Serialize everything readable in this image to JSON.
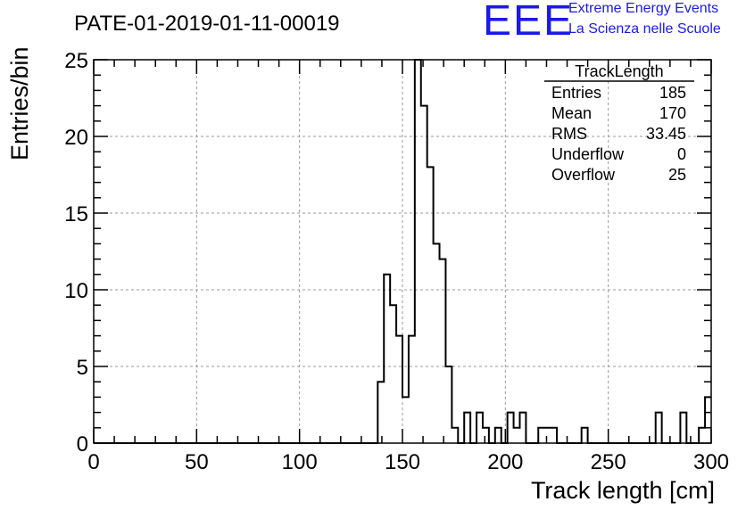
{
  "header": {
    "title": "PATE-01-2019-01-11-00019",
    "logo_text": "EEE",
    "logo_line1": "Extreme Energy Events",
    "logo_line2": "La Scienza nelle Scuole",
    "logo_color": "#1a1ae6"
  },
  "stats": {
    "title": "TrackLength",
    "rows": [
      {
        "label": "Entries",
        "value": "185"
      },
      {
        "label": "Mean",
        "value": "170"
      },
      {
        "label": "RMS",
        "value": "33.45"
      },
      {
        "label": "Underflow",
        "value": "0"
      },
      {
        "label": "Overflow",
        "value": "25"
      }
    ]
  },
  "chart_data": {
    "type": "histogram",
    "title": "PATE-01-2019-01-11-00019",
    "xlabel": "Track length [cm]",
    "ylabel": "Entries/bin",
    "xlim": [
      0,
      300
    ],
    "ylim": [
      0,
      25
    ],
    "bin_width": 3,
    "grid": true,
    "x_ticks": [
      0,
      50,
      100,
      150,
      200,
      250,
      300
    ],
    "y_ticks": [
      0,
      5,
      10,
      15,
      20,
      25
    ],
    "bins": [
      {
        "x": 138,
        "count": 4
      },
      {
        "x": 141,
        "count": 11
      },
      {
        "x": 144,
        "count": 9
      },
      {
        "x": 147,
        "count": 7
      },
      {
        "x": 150,
        "count": 3
      },
      {
        "x": 153,
        "count": 7
      },
      {
        "x": 156,
        "count": 25
      },
      {
        "x": 159,
        "count": 22
      },
      {
        "x": 162,
        "count": 18
      },
      {
        "x": 165,
        "count": 13
      },
      {
        "x": 168,
        "count": 12
      },
      {
        "x": 171,
        "count": 5
      },
      {
        "x": 174,
        "count": 1
      },
      {
        "x": 180,
        "count": 2
      },
      {
        "x": 186,
        "count": 2
      },
      {
        "x": 189,
        "count": 1
      },
      {
        "x": 195,
        "count": 1
      },
      {
        "x": 201,
        "count": 2
      },
      {
        "x": 204,
        "count": 1
      },
      {
        "x": 207,
        "count": 2
      },
      {
        "x": 216,
        "count": 1
      },
      {
        "x": 219,
        "count": 1
      },
      {
        "x": 222,
        "count": 1
      },
      {
        "x": 237,
        "count": 1
      },
      {
        "x": 273,
        "count": 2
      },
      {
        "x": 285,
        "count": 2
      },
      {
        "x": 294,
        "count": 1
      },
      {
        "x": 297,
        "count": 3
      }
    ]
  }
}
